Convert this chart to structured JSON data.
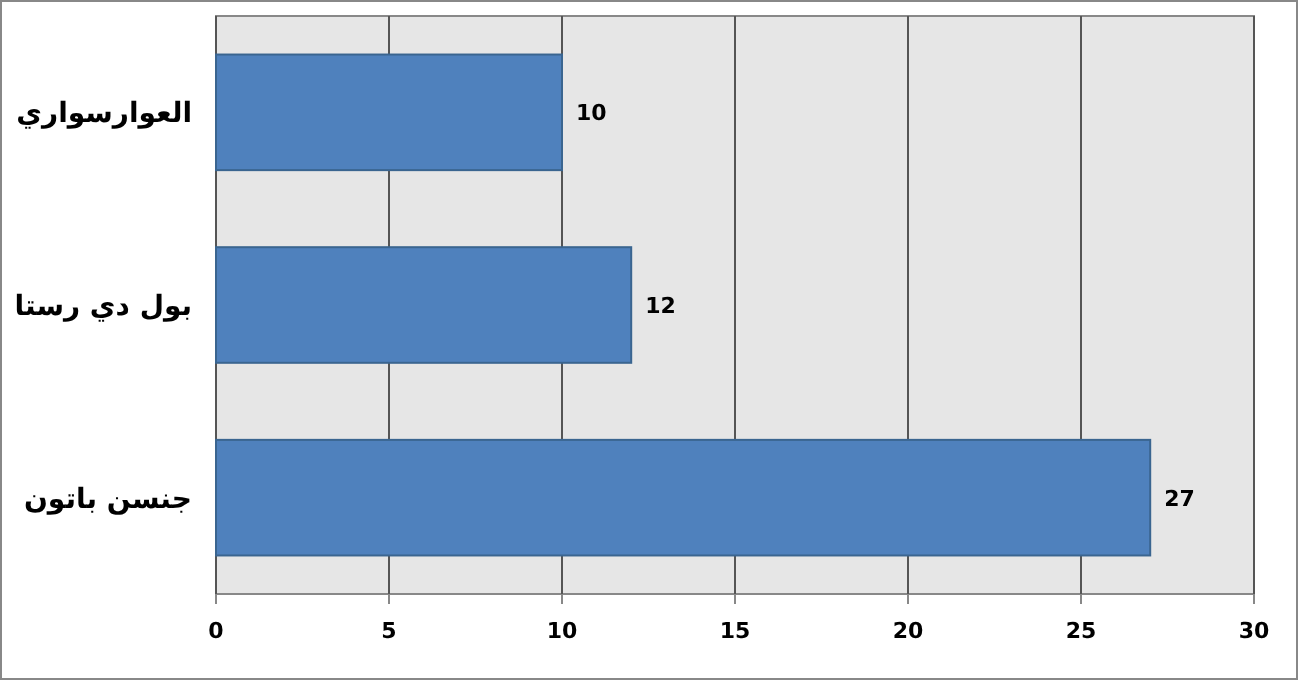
{
  "chart_data": {
    "type": "bar",
    "orientation": "horizontal",
    "categories": [
      "العوارسواري",
      "بول دي رستا",
      "جنسن باتون"
    ],
    "values": [
      10,
      12,
      27
    ],
    "color": "#4f81bd",
    "xlim": [
      0,
      30
    ],
    "xticks": [
      0,
      5,
      10,
      15,
      20,
      25,
      30
    ],
    "grid": "x",
    "data_labels": true
  }
}
